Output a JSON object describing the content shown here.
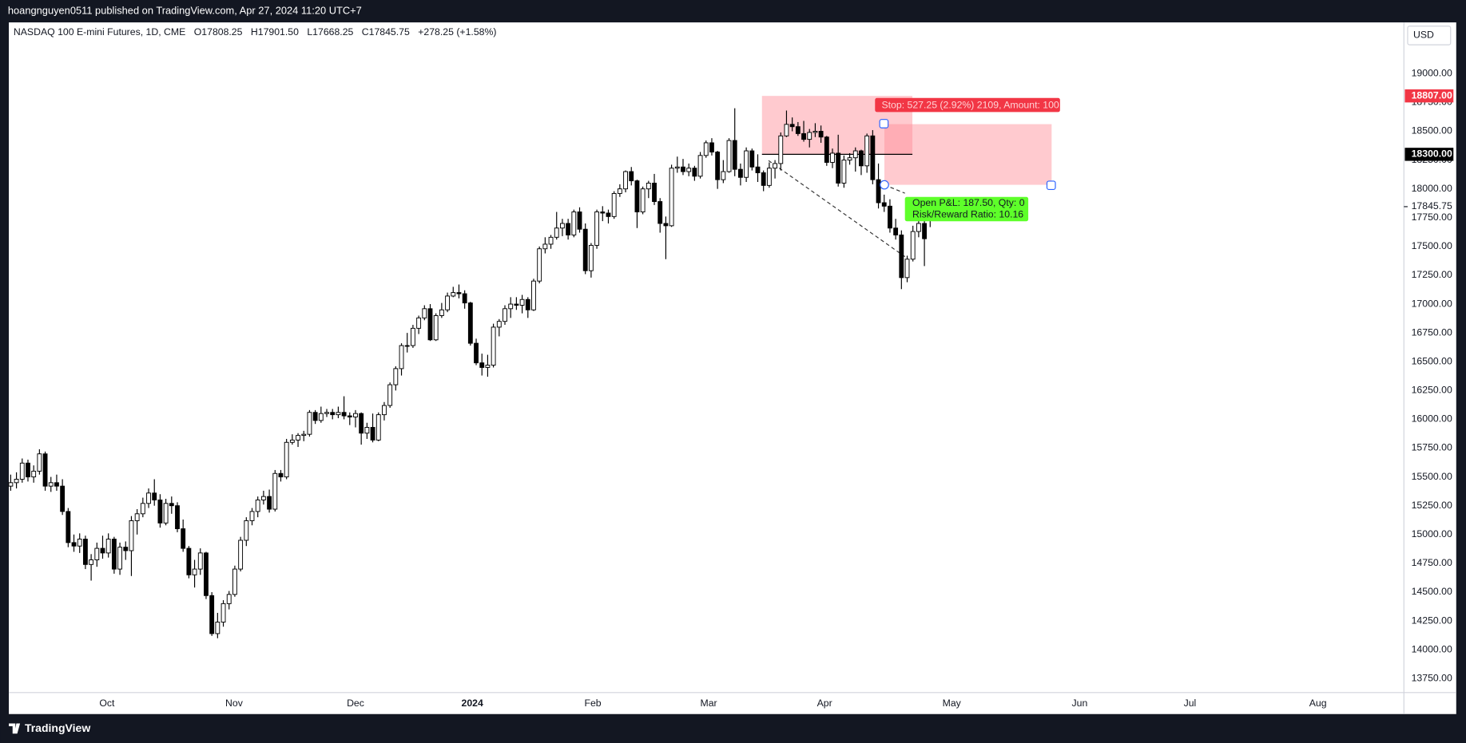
{
  "header": {
    "publisher_line": "hoangnguyen0511 published on TradingView.com, Apr 27, 2024 11:20 UTC+7"
  },
  "chart_data": {
    "type": "candlestick",
    "title": "NASDAQ 100 E-mini Futures, 1D, CME",
    "ohlc_legend": [
      "O17808.25",
      "H17901.50",
      "L17668.25",
      "C17845.75",
      "+278.25 (+1.58%)"
    ],
    "currency": "USD",
    "up_color": "#ffffff",
    "down_color": "#000000",
    "border_color": "#000000",
    "grid": false,
    "ylim": [
      13628,
      19445
    ],
    "yticks": [
      {
        "value": 13750,
        "label": "13750.00"
      },
      {
        "value": 14000,
        "label": "14000.00"
      },
      {
        "value": 14250,
        "label": "14250.00"
      },
      {
        "value": 14500,
        "label": "14500.00"
      },
      {
        "value": 14750,
        "label": "14750.00"
      },
      {
        "value": 15000,
        "label": "15000.00"
      },
      {
        "value": 15250,
        "label": "15250.00"
      },
      {
        "value": 15500,
        "label": "15500.00"
      },
      {
        "value": 15750,
        "label": "15750.00"
      },
      {
        "value": 16000,
        "label": "16000.00"
      },
      {
        "value": 16250,
        "label": "16250.00"
      },
      {
        "value": 16500,
        "label": "16500.00"
      },
      {
        "value": 16750,
        "label": "16750.00"
      },
      {
        "value": 17000,
        "label": "17000.00"
      },
      {
        "value": 17250,
        "label": "17250.00"
      },
      {
        "value": 17500,
        "label": "17500.00"
      },
      {
        "value": 17750,
        "label": "17750.00"
      },
      {
        "value": 18000,
        "label": "18000.00"
      },
      {
        "value": 18250,
        "label": "18250.00"
      },
      {
        "value": 18500,
        "label": "18500.00"
      },
      {
        "value": 18750,
        "label": "18750.00"
      },
      {
        "value": 19000,
        "label": "19000.00"
      }
    ],
    "x_labels": [
      "Oct",
      "Nov",
      "Dec",
      "2024",
      "Feb",
      "Mar",
      "Apr",
      "May",
      "Jun",
      "Jul",
      "Aug"
    ],
    "price_labels": [
      {
        "value": 18807,
        "label": "18807.00",
        "bg": "#f23645"
      },
      {
        "value": 18300,
        "label": "18300.00",
        "bg": "#000000"
      },
      {
        "value": 17845.75,
        "label": "17845.75"
      }
    ],
    "position_tool": {
      "stop_label": "Stop: 527.25 (2.92%) 2109, Amount: 100",
      "pnl_label": "Open P&L: 187.50, Qty: 0",
      "rr_label": "Risk/Reward Ratio: 10.16"
    },
    "candles": [
      [
        15420,
        15520,
        15380,
        15450
      ],
      [
        15450,
        15540,
        15400,
        15480
      ],
      [
        15480,
        15660,
        15450,
        15620
      ],
      [
        15620,
        15650,
        15460,
        15500
      ],
      [
        15500,
        15600,
        15450,
        15550
      ],
      [
        15550,
        15740,
        15520,
        15700
      ],
      [
        15700,
        15720,
        15380,
        15420
      ],
      [
        15420,
        15500,
        15370,
        15450
      ],
      [
        15450,
        15520,
        15380,
        15420
      ],
      [
        15420,
        15480,
        15170,
        15200
      ],
      [
        15200,
        15230,
        14890,
        14930
      ],
      [
        14930,
        15000,
        14850,
        14900
      ],
      [
        14900,
        15010,
        14840,
        14960
      ],
      [
        14960,
        14990,
        14700,
        14740
      ],
      [
        14740,
        14830,
        14600,
        14780
      ],
      [
        14780,
        14930,
        14720,
        14880
      ],
      [
        14880,
        14990,
        14790,
        14840
      ],
      [
        14840,
        15010,
        14800,
        14960
      ],
      [
        14960,
        14980,
        14660,
        14700
      ],
      [
        14700,
        14930,
        14650,
        14890
      ],
      [
        14890,
        14940,
        14780,
        14860
      ],
      [
        14860,
        15160,
        14640,
        15120
      ],
      [
        15120,
        15220,
        15000,
        15180
      ],
      [
        15180,
        15320,
        15150,
        15270
      ],
      [
        15270,
        15400,
        15230,
        15360
      ],
      [
        15360,
        15480,
        15250,
        15300
      ],
      [
        15300,
        15350,
        15060,
        15100
      ],
      [
        15100,
        15310,
        15080,
        15270
      ],
      [
        15270,
        15330,
        15180,
        15250
      ],
      [
        15250,
        15280,
        15020,
        15050
      ],
      [
        15050,
        15130,
        14850,
        14880
      ],
      [
        14880,
        14900,
        14620,
        14650
      ],
      [
        14650,
        14780,
        14540,
        14700
      ],
      [
        14700,
        14880,
        14650,
        14840
      ],
      [
        14840,
        14850,
        14440,
        14470
      ],
      [
        14470,
        14500,
        14120,
        14140
      ],
      [
        14140,
        14320,
        14100,
        14240
      ],
      [
        14240,
        14430,
        14200,
        14400
      ],
      [
        14400,
        14510,
        14350,
        14480
      ],
      [
        14480,
        14730,
        14460,
        14700
      ],
      [
        14700,
        14980,
        14680,
        14950
      ],
      [
        14950,
        15150,
        14900,
        15120
      ],
      [
        15120,
        15230,
        15080,
        15200
      ],
      [
        15200,
        15330,
        15150,
        15300
      ],
      [
        15300,
        15380,
        15260,
        15330
      ],
      [
        15330,
        15390,
        15190,
        15220
      ],
      [
        15220,
        15560,
        15200,
        15530
      ],
      [
        15530,
        15560,
        15460,
        15500
      ],
      [
        15500,
        15830,
        15480,
        15800
      ],
      [
        15800,
        15870,
        15780,
        15820
      ],
      [
        15820,
        15880,
        15760,
        15860
      ],
      [
        15860,
        15900,
        15810,
        15870
      ],
      [
        15870,
        16080,
        15850,
        16060
      ],
      [
        16060,
        16080,
        15960,
        15990
      ],
      [
        15990,
        16110,
        15970,
        16050
      ],
      [
        16050,
        16090,
        16020,
        16060
      ],
      [
        16060,
        16090,
        16000,
        16040
      ],
      [
        16040,
        16110,
        16010,
        16060
      ],
      [
        16060,
        16200,
        16000,
        16030
      ],
      [
        16030,
        16060,
        15950,
        16020
      ],
      [
        16020,
        16080,
        15930,
        16050
      ],
      [
        16050,
        16060,
        15780,
        15880
      ],
      [
        15880,
        15970,
        15830,
        15930
      ],
      [
        15930,
        16050,
        15800,
        15820
      ],
      [
        15820,
        16060,
        15810,
        16040
      ],
      [
        16040,
        16150,
        15990,
        16120
      ],
      [
        16120,
        16320,
        16100,
        16300
      ],
      [
        16300,
        16460,
        16250,
        16440
      ],
      [
        16440,
        16660,
        16380,
        16640
      ],
      [
        16640,
        16750,
        16580,
        16640
      ],
      [
        16640,
        16820,
        16620,
        16790
      ],
      [
        16790,
        16900,
        16740,
        16880
      ],
      [
        16880,
        16990,
        16860,
        16960
      ],
      [
        16960,
        17000,
        16680,
        16690
      ],
      [
        16690,
        16920,
        16680,
        16900
      ],
      [
        16900,
        17010,
        16880,
        16950
      ],
      [
        16950,
        17100,
        16930,
        17070
      ],
      [
        17070,
        17150,
        17060,
        17100
      ],
      [
        17100,
        17170,
        17050,
        17090
      ],
      [
        17090,
        17120,
        16960,
        17010
      ],
      [
        17010,
        17020,
        16640,
        16660
      ],
      [
        16660,
        16700,
        16470,
        16490
      ],
      [
        16490,
        16570,
        16380,
        16450
      ],
      [
        16450,
        16560,
        16370,
        16470
      ],
      [
        16470,
        16830,
        16450,
        16800
      ],
      [
        16800,
        16870,
        16720,
        16850
      ],
      [
        16850,
        16990,
        16820,
        16960
      ],
      [
        16960,
        17060,
        16880,
        17000
      ],
      [
        17000,
        17060,
        16950,
        16990
      ],
      [
        16990,
        17080,
        16920,
        17040
      ],
      [
        17040,
        17060,
        16880,
        16950
      ],
      [
        16950,
        17220,
        16940,
        17200
      ],
      [
        17200,
        17500,
        17180,
        17480
      ],
      [
        17480,
        17580,
        17440,
        17520
      ],
      [
        17520,
        17600,
        17480,
        17580
      ],
      [
        17580,
        17800,
        17560,
        17660
      ],
      [
        17660,
        17740,
        17590,
        17700
      ],
      [
        17700,
        17740,
        17560,
        17600
      ],
      [
        17600,
        17820,
        17580,
        17800
      ],
      [
        17800,
        17840,
        17620,
        17650
      ],
      [
        17650,
        17700,
        17260,
        17290
      ],
      [
        17290,
        17530,
        17230,
        17510
      ],
      [
        17510,
        17820,
        17480,
        17800
      ],
      [
        17800,
        17850,
        17720,
        17790
      ],
      [
        17790,
        17820,
        17700,
        17760
      ],
      [
        17760,
        17980,
        17740,
        17960
      ],
      [
        17960,
        18040,
        17930,
        18000
      ],
      [
        18000,
        18160,
        17970,
        18150
      ],
      [
        18150,
        18190,
        18030,
        18070
      ],
      [
        18070,
        18080,
        17660,
        17800
      ],
      [
        17800,
        18020,
        17780,
        18000
      ],
      [
        18000,
        18070,
        17920,
        18050
      ],
      [
        18050,
        18130,
        17860,
        17890
      ],
      [
        17890,
        17920,
        17620,
        17700
      ],
      [
        17700,
        17760,
        17390,
        17680
      ],
      [
        17680,
        18210,
        17670,
        18180
      ],
      [
        18180,
        18280,
        18140,
        18190
      ],
      [
        18190,
        18260,
        18120,
        18150
      ],
      [
        18150,
        18220,
        18110,
        18180
      ],
      [
        18180,
        18200,
        18070,
        18110
      ],
      [
        18110,
        18320,
        18090,
        18290
      ],
      [
        18290,
        18420,
        18270,
        18400
      ],
      [
        18400,
        18440,
        18290,
        18320
      ],
      [
        18320,
        18330,
        18000,
        18080
      ],
      [
        18080,
        18250,
        18050,
        18150
      ],
      [
        18150,
        18440,
        18140,
        18420
      ],
      [
        18420,
        18700,
        18110,
        18170
      ],
      [
        18170,
        18220,
        18030,
        18100
      ],
      [
        18100,
        18360,
        18060,
        18330
      ],
      [
        18330,
        18350,
        18160,
        18190
      ],
      [
        18190,
        18300,
        18060,
        18140
      ],
      [
        18140,
        18160,
        17980,
        18030
      ],
      [
        18030,
        18230,
        18010,
        18180
      ],
      [
        18180,
        18250,
        18090,
        18220
      ],
      [
        18220,
        18490,
        18160,
        18460
      ],
      [
        18460,
        18680,
        18450,
        18560
      ],
      [
        18560,
        18620,
        18500,
        18540
      ],
      [
        18540,
        18580,
        18460,
        18480
      ],
      [
        18480,
        18590,
        18410,
        18430
      ],
      [
        18430,
        18520,
        18360,
        18490
      ],
      [
        18490,
        18570,
        18450,
        18500
      ],
      [
        18500,
        18550,
        18400,
        18450
      ],
      [
        18450,
        18460,
        18200,
        18230
      ],
      [
        18230,
        18350,
        18180,
        18310
      ],
      [
        18310,
        18470,
        18020,
        18050
      ],
      [
        18050,
        18290,
        18010,
        18250
      ],
      [
        18250,
        18310,
        18210,
        18270
      ],
      [
        18270,
        18360,
        18150,
        18330
      ],
      [
        18330,
        18340,
        18120,
        18200
      ],
      [
        18200,
        18480,
        18140,
        18460
      ],
      [
        18460,
        18510,
        18040,
        18080
      ],
      [
        18080,
        18220,
        17830,
        17880
      ],
      [
        17880,
        17950,
        17800,
        17850
      ],
      [
        17850,
        17910,
        17620,
        17660
      ],
      [
        17660,
        17740,
        17560,
        17600
      ],
      [
        17600,
        17640,
        17130,
        17230
      ],
      [
        17230,
        17420,
        17190,
        17390
      ],
      [
        17390,
        17680,
        17370,
        17630
      ],
      [
        17630,
        17760,
        17580,
        17700
      ],
      [
        17700,
        17730,
        17330,
        17567.5
      ],
      [
        17808.25,
        17901.5,
        17668.25,
        17845.75
      ]
    ]
  },
  "footer": {
    "brand": "TradingView"
  }
}
